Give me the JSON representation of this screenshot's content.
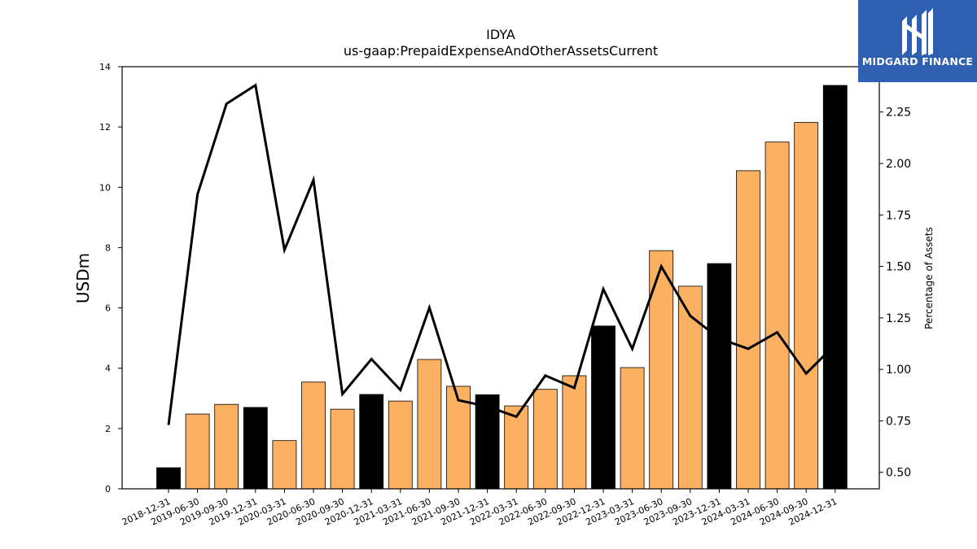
{
  "chart_data": {
    "type": "bar",
    "title": "IDYA",
    "subtitle": "us-gaap:PrepaidExpenseAndOtherAssetsCurrent",
    "ylabel": "USDm",
    "y2label": "Percentage of Assets",
    "ylim": [
      0,
      14
    ],
    "y2lim": [
      0.42,
      2.47
    ],
    "yticks": [
      "0",
      "2",
      "4",
      "6",
      "8",
      "10",
      "12",
      "14"
    ],
    "y2ticks": [
      "0.50",
      "0.75",
      "1.00",
      "1.25",
      "1.50",
      "1.75",
      "2.00",
      "2.25"
    ],
    "legend": "none",
    "grid": false,
    "colors": {
      "annual": "#000000",
      "quarterly": "#fbb161",
      "line": "#000000"
    },
    "categories": [
      "2018-12-31",
      "2019-06-30",
      "2019-09-30",
      "2019-12-31",
      "2020-03-31",
      "2020-06-30",
      "2020-09-30",
      "2020-12-31",
      "2021-03-31",
      "2021-06-30",
      "2021-09-30",
      "2021-12-31",
      "2022-03-31",
      "2022-06-30",
      "2022-09-30",
      "2022-12-31",
      "2023-03-31",
      "2023-06-30",
      "2023-09-30",
      "2023-12-31",
      "2024-03-31",
      "2024-06-30",
      "2024-09-30",
      "2024-12-31"
    ],
    "series": [
      {
        "type": "bar",
        "values": [
          0.7,
          2.48,
          2.8,
          2.7,
          1.6,
          3.54,
          2.64,
          3.13,
          2.91,
          4.29,
          3.4,
          3.12,
          2.75,
          3.3,
          3.75,
          5.4,
          4.02,
          7.9,
          6.72,
          7.47,
          10.55,
          11.5,
          12.15,
          13.38
        ],
        "annual": [
          true,
          false,
          false,
          true,
          false,
          false,
          false,
          true,
          false,
          false,
          false,
          true,
          false,
          false,
          false,
          true,
          false,
          false,
          false,
          true,
          false,
          false,
          false,
          true
        ]
      },
      {
        "type": "line",
        "axis": "right",
        "values": [
          0.73,
          1.85,
          2.29,
          2.38,
          1.58,
          1.92,
          0.88,
          1.05,
          0.9,
          1.3,
          0.85,
          0.82,
          0.77,
          0.97,
          0.91,
          1.39,
          1.1,
          1.5,
          1.26,
          1.15,
          1.1,
          1.18,
          0.98,
          1.12
        ]
      }
    ]
  },
  "logo": {
    "text": "MIDGARD FINANCE"
  }
}
